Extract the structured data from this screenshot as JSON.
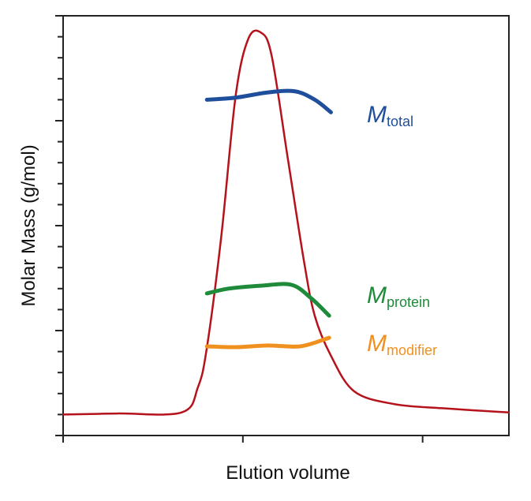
{
  "chart_data": {
    "type": "line",
    "title": "",
    "xlabel": "Elution volume",
    "ylabel": "Molar Mass (g/mol)",
    "xlim": [
      0,
      2.48
    ],
    "ylim": [
      0,
      20
    ],
    "x_major_ticks": [
      0,
      1,
      2
    ],
    "y_major_ticks": [
      0,
      5,
      10,
      15,
      20
    ],
    "y_minor_step": 1,
    "grid": false,
    "legend": "inline labels at right of curves",
    "series": [
      {
        "key": "peak",
        "color": "#b5121b",
        "x": [
          0,
          0.3,
          0.66,
          0.75,
          0.8,
          0.88,
          0.96,
          1.03,
          1.1,
          1.16,
          1.25,
          1.34,
          1.4,
          1.49,
          1.62,
          1.84,
          2.11,
          2.48
        ],
        "y": [
          1.0,
          1.05,
          1.1,
          2.3,
          4.2,
          9.5,
          16.2,
          18.9,
          19.2,
          18.1,
          13.2,
          8.3,
          5.7,
          3.8,
          2.1,
          1.5,
          1.3,
          1.1
        ]
      },
      {
        "key": "total",
        "name": "M",
        "subscript": "total",
        "color": "#1f4e9c",
        "x": [
          0.8,
          0.96,
          1.14,
          1.29,
          1.4,
          1.49
        ],
        "y": [
          16.0,
          16.1,
          16.35,
          16.4,
          16.0,
          15.4
        ]
      },
      {
        "key": "protein",
        "name": "M",
        "subscript": "protein",
        "color": "#1e8a3a",
        "x": [
          0.8,
          0.92,
          1.1,
          1.27,
          1.38,
          1.48
        ],
        "y": [
          6.77,
          7.0,
          7.14,
          7.18,
          6.54,
          5.71
        ]
      },
      {
        "key": "modifier",
        "name": "M",
        "subscript": "modifier",
        "color": "#f0901e",
        "x": [
          0.8,
          0.96,
          1.14,
          1.32,
          1.48
        ],
        "y": [
          4.25,
          4.21,
          4.29,
          4.25,
          4.66
        ]
      }
    ]
  }
}
